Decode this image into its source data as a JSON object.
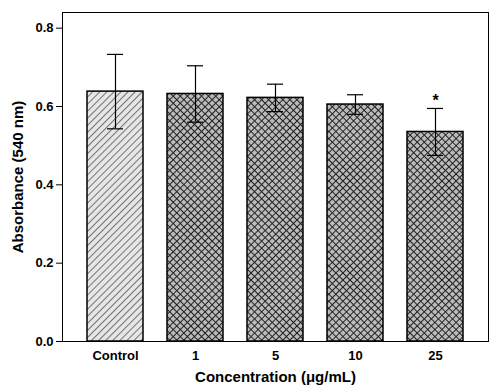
{
  "chart_data": {
    "type": "bar",
    "x_label": "Concentration (μg/mL)",
    "y_label": "Absorbance (540 nm)",
    "categories": [
      "Control",
      "1",
      "5",
      "10",
      "25"
    ],
    "values": [
      0.638,
      0.632,
      0.622,
      0.605,
      0.535
    ],
    "errors": [
      0.095,
      0.072,
      0.035,
      0.025,
      0.06
    ],
    "ylim": [
      0,
      0.84
    ],
    "yticks": [
      {
        "value": 0,
        "label": "0.0"
      },
      0.2,
      0.4,
      0.6,
      0.8
    ],
    "annotations": [
      {
        "category": "25",
        "text": "*"
      }
    ],
    "grid": false
  }
}
